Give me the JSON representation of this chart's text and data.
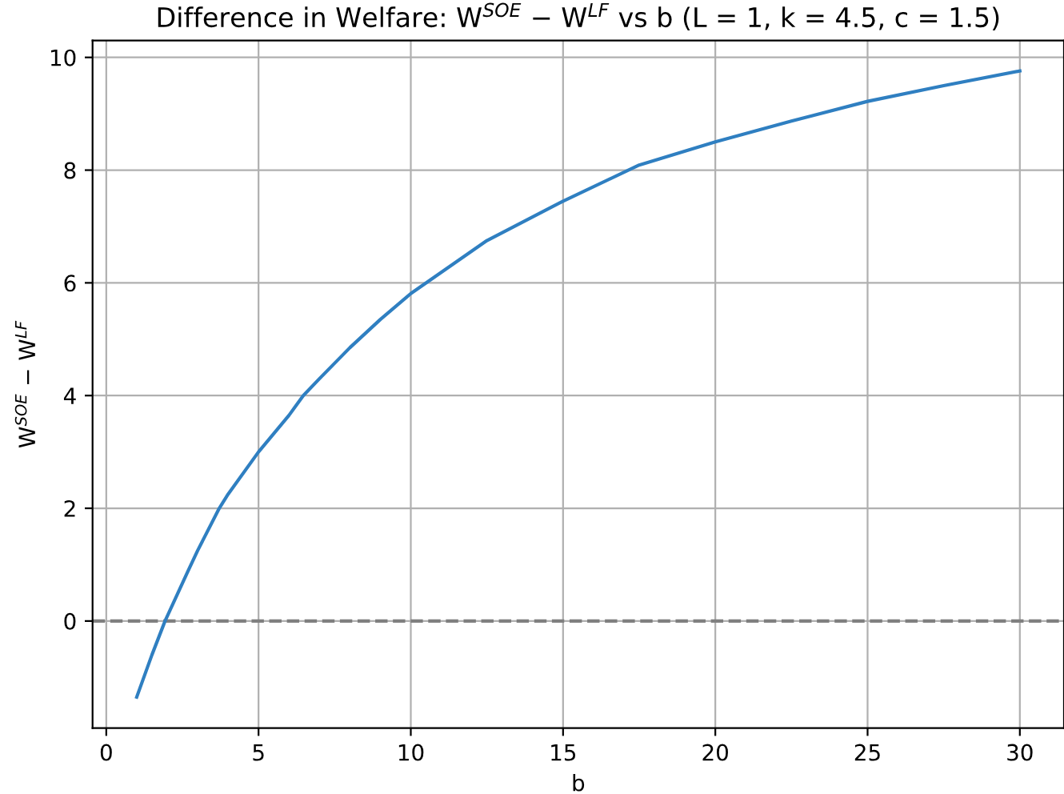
{
  "chart_data": {
    "type": "line",
    "title": "Difference in Welfare: W$^{SOE}$ − W$^{LF}$ vs b (L = 1, k = 4.5, c = 1.5)",
    "xlabel": "b",
    "ylabel": "W$^{SOE}$ − W$^{LF}$",
    "series": [
      {
        "color": "#2f7fc1",
        "x": [
          1,
          1.5,
          1.93,
          2.67,
          3,
          3.71,
          4,
          5,
          6,
          6.47,
          7,
          8,
          9,
          10,
          12.5,
          15,
          17.5,
          20,
          22.5,
          25,
          27.5,
          30
        ],
        "values": [
          -1.35,
          -0.6,
          0,
          0.87,
          1.25,
          2.0,
          2.25,
          3.0,
          3.65,
          4.0,
          4.3,
          4.85,
          5.35,
          5.81,
          6.75,
          7.45,
          8.09,
          8.5,
          8.87,
          9.22,
          9.5,
          9.76
        ]
      }
    ],
    "xlim": [
      -0.45,
      31.45
    ],
    "ylim": [
      -1.9,
      10.3
    ],
    "xticks": [
      0,
      5,
      10,
      15,
      20,
      25,
      30
    ],
    "yticks": [
      0,
      2,
      4,
      6,
      8,
      10
    ],
    "ref_lines": [
      {
        "axis": "y",
        "value": 0,
        "color": "#808080",
        "line_style": "dashed"
      }
    ],
    "grid": true,
    "marker": "none",
    "line_style": "solid"
  }
}
